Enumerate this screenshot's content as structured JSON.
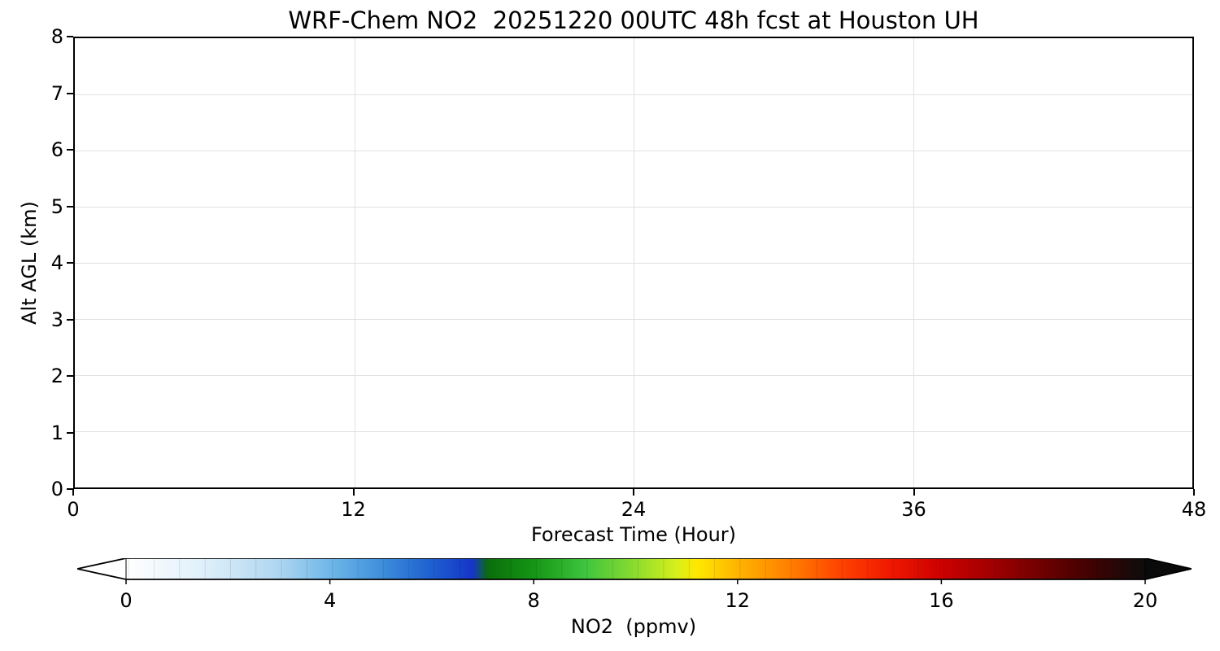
{
  "chart_data": {
    "type": "heatmap",
    "title": "WRF-Chem NO2  20251220 00UTC 48h fcst at Houston UH",
    "xlabel": "Forecast Time (Hour)",
    "ylabel": "Alt AGL (km)",
    "xlim": [
      0,
      48
    ],
    "ylim": [
      0,
      8
    ],
    "x_ticks": [
      0,
      12,
      24,
      36,
      48
    ],
    "y_ticks": [
      0,
      1,
      2,
      3,
      4,
      5,
      6,
      7,
      8
    ],
    "grid": true,
    "values": [],
    "note": "Cross-section plot area renders blank/white: no NO2 contour values are visible above the lowest colorbar level anywhere in the 0-48 h / 0-8 km domain.",
    "axis_color": "#000000",
    "grid_color": "#e0e0e0",
    "background": "#ffffff",
    "colorbar": {
      "label": "NO2  (ppmv)",
      "range": [
        0,
        20
      ],
      "ticks": [
        0,
        4,
        8,
        12,
        16,
        20
      ],
      "extend": "both",
      "under_color": "#ffffff",
      "over_color": "#0a0a0a",
      "frame_color": "#000000",
      "stops": [
        {
          "pos": 0.0,
          "color": "#ffffff"
        },
        {
          "pos": 0.075,
          "color": "#e0f0fa"
        },
        {
          "pos": 0.15,
          "color": "#aed6f1"
        },
        {
          "pos": 0.2,
          "color": "#6fb7e8"
        },
        {
          "pos": 0.25,
          "color": "#3f8fdc"
        },
        {
          "pos": 0.3,
          "color": "#1e5fd0"
        },
        {
          "pos": 0.34,
          "color": "#1535c8"
        },
        {
          "pos": 0.355,
          "color": "#0b6e0b"
        },
        {
          "pos": 0.4,
          "color": "#149614"
        },
        {
          "pos": 0.45,
          "color": "#3ec43e"
        },
        {
          "pos": 0.5,
          "color": "#8ddc2e"
        },
        {
          "pos": 0.54,
          "color": "#d6ef1a"
        },
        {
          "pos": 0.56,
          "color": "#ffe800"
        },
        {
          "pos": 0.6,
          "color": "#ffb400"
        },
        {
          "pos": 0.65,
          "color": "#ff8000"
        },
        {
          "pos": 0.7,
          "color": "#ff4400"
        },
        {
          "pos": 0.75,
          "color": "#f01800"
        },
        {
          "pos": 0.8,
          "color": "#cc0000"
        },
        {
          "pos": 0.85,
          "color": "#a00000"
        },
        {
          "pos": 0.9,
          "color": "#6e0000"
        },
        {
          "pos": 0.95,
          "color": "#3c0202"
        },
        {
          "pos": 1.0,
          "color": "#0d0d0d"
        }
      ]
    }
  }
}
